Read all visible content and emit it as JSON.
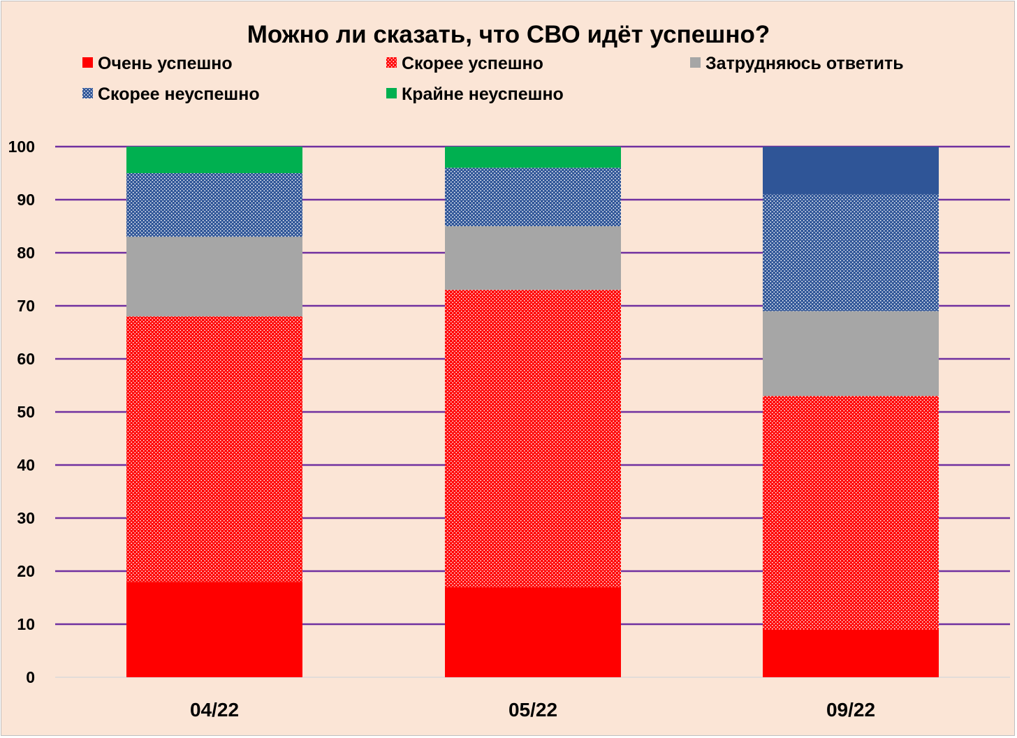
{
  "chart_data": {
    "type": "bar",
    "stacked": true,
    "title": "Можно ли сказать, что СВО идёт успешно?",
    "xlabel": "",
    "ylabel": "",
    "categories": [
      "04/22",
      "05/22",
      "09/22"
    ],
    "ylim": [
      0,
      100
    ],
    "yticks": [
      0,
      10,
      20,
      30,
      40,
      50,
      60,
      70,
      80,
      90,
      100
    ],
    "grid": true,
    "legend_position": "top",
    "series": [
      {
        "name": "Очень успешно",
        "color": "#ff0000",
        "pattern": "solid",
        "values": [
          18,
          17,
          9
        ]
      },
      {
        "name": "Скорее успешно",
        "color": "#ff0000",
        "pattern": "dotted",
        "values": [
          50,
          56,
          44
        ]
      },
      {
        "name": "Затрудняюсь ответить",
        "color": "#a6a6a6",
        "pattern": "solid",
        "values": [
          15,
          12,
          16
        ]
      },
      {
        "name": "Скорее неуспешно",
        "color": "#2f5597",
        "pattern": "dotted",
        "values": [
          12,
          11,
          22
        ]
      },
      {
        "name": "Крайне неуспешно",
        "color": "#00b050",
        "pattern": "solid",
        "values": [
          5,
          4,
          0
        ]
      },
      {
        "name": "",
        "color": "#2f5597",
        "pattern": "solid",
        "values": [
          0,
          0,
          9
        ]
      }
    ],
    "colors": {
      "background": "#fbe5d6",
      "gridline": "#7030a0",
      "axis": "#d9d9d9"
    }
  }
}
